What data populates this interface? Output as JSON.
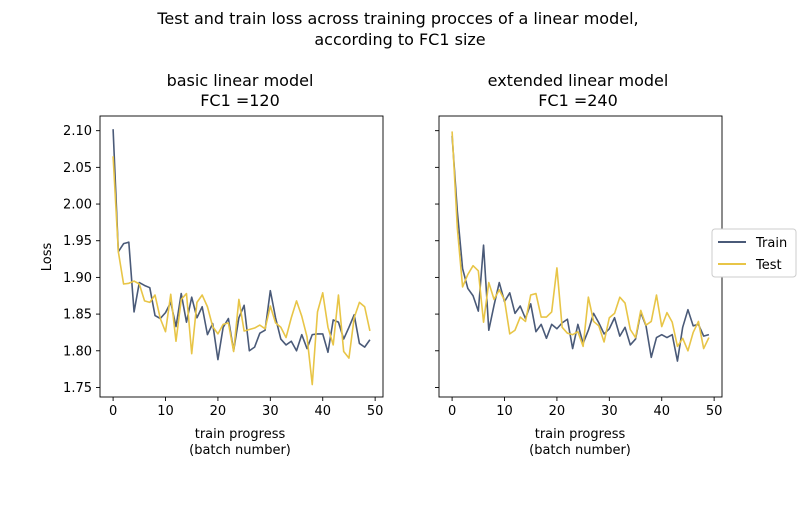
{
  "figure": {
    "suptitle_line1": "Test and train loss across training procces of a linear model,",
    "suptitle_line2": "according to FC1 size"
  },
  "legend": {
    "position": "right-center",
    "entries": [
      {
        "label": "Train",
        "color": "#4a5a78"
      },
      {
        "label": "Test",
        "color": "#e8c547"
      }
    ]
  },
  "chart_data": [
    {
      "type": "line",
      "title_line1": "basic linear model",
      "title_line2": "FC1 =120",
      "xlabel_line1": "train progress",
      "xlabel_line2": "(batch number)",
      "ylabel": "Loss",
      "xlim": [
        -2.5,
        51.5
      ],
      "ylim": [
        1.737,
        2.12
      ],
      "xticks": [
        0,
        10,
        20,
        30,
        40,
        50
      ],
      "yticks": [
        1.75,
        1.8,
        1.85,
        1.9,
        1.95,
        2.0,
        2.05,
        2.1
      ],
      "ytick_labels": [
        "1.75",
        "1.80",
        "1.85",
        "1.90",
        "1.95",
        "2.00",
        "2.05",
        "2.10"
      ],
      "x": [
        0,
        1,
        2,
        3,
        4,
        5,
        6,
        7,
        8,
        9,
        10,
        11,
        12,
        13,
        14,
        15,
        16,
        17,
        18,
        19,
        20,
        21,
        22,
        23,
        24,
        25,
        26,
        27,
        28,
        29,
        30,
        31,
        32,
        33,
        34,
        35,
        36,
        37,
        38,
        39,
        40,
        41,
        42,
        43,
        44,
        45,
        46,
        47,
        48,
        49
      ],
      "series": [
        {
          "name": "Train",
          "color": "#4a5a78",
          "values": [
            2.102,
            1.935,
            1.946,
            1.948,
            1.853,
            1.893,
            1.889,
            1.886,
            1.848,
            1.844,
            1.852,
            1.866,
            1.833,
            1.878,
            1.839,
            1.873,
            1.845,
            1.86,
            1.822,
            1.837,
            1.788,
            1.832,
            1.844,
            1.8,
            1.845,
            1.862,
            1.8,
            1.805,
            1.824,
            1.828,
            1.882,
            1.845,
            1.816,
            1.808,
            1.813,
            1.8,
            1.822,
            1.803,
            1.822,
            1.823,
            1.823,
            1.798,
            1.842,
            1.839,
            1.816,
            1.832,
            1.849,
            1.81,
            1.805,
            1.815
          ]
        },
        {
          "name": "Test",
          "color": "#e8c547",
          "values": [
            2.065,
            1.935,
            1.891,
            1.892,
            1.895,
            1.891,
            1.868,
            1.866,
            1.876,
            1.844,
            1.826,
            1.877,
            1.813,
            1.87,
            1.878,
            1.796,
            1.866,
            1.876,
            1.86,
            1.833,
            1.823,
            1.836,
            1.838,
            1.799,
            1.87,
            1.827,
            1.829,
            1.831,
            1.835,
            1.83,
            1.861,
            1.838,
            1.832,
            1.818,
            1.845,
            1.868,
            1.847,
            1.819,
            1.754,
            1.853,
            1.879,
            1.832,
            1.808,
            1.876,
            1.799,
            1.79,
            1.845,
            1.866,
            1.86,
            1.827
          ]
        }
      ]
    },
    {
      "type": "line",
      "title_line1": "extended linear model",
      "title_line2": "FC1 =240",
      "xlabel_line1": "train progress",
      "xlabel_line2": "(batch number)",
      "ylabel": "",
      "xlim": [
        -2.5,
        51.5
      ],
      "ylim": [
        1.737,
        2.12
      ],
      "xticks": [
        0,
        10,
        20,
        30,
        40,
        50
      ],
      "shared_y": true,
      "x": [
        0,
        1,
        2,
        3,
        4,
        5,
        6,
        7,
        8,
        9,
        10,
        11,
        12,
        13,
        14,
        15,
        16,
        17,
        18,
        19,
        20,
        21,
        22,
        23,
        24,
        25,
        26,
        27,
        28,
        29,
        30,
        31,
        32,
        33,
        34,
        35,
        36,
        37,
        38,
        39,
        40,
        41,
        42,
        43,
        44,
        45,
        46,
        47,
        48,
        49
      ],
      "series": [
        {
          "name": "Train",
          "color": "#4a5a78",
          "values": [
            2.093,
            1.99,
            1.912,
            1.885,
            1.875,
            1.854,
            1.944,
            1.828,
            1.862,
            1.893,
            1.867,
            1.879,
            1.851,
            1.861,
            1.844,
            1.864,
            1.826,
            1.836,
            1.817,
            1.836,
            1.83,
            1.838,
            1.843,
            1.803,
            1.836,
            1.81,
            1.828,
            1.851,
            1.838,
            1.823,
            1.83,
            1.845,
            1.82,
            1.832,
            1.808,
            1.816,
            1.852,
            1.834,
            1.791,
            1.818,
            1.822,
            1.818,
            1.822,
            1.786,
            1.832,
            1.856,
            1.834,
            1.836,
            1.82,
            1.822
          ]
        },
        {
          "name": "Test",
          "color": "#e8c547",
          "values": [
            2.099,
            1.967,
            1.887,
            1.904,
            1.916,
            1.909,
            1.839,
            1.893,
            1.87,
            1.883,
            1.869,
            1.823,
            1.828,
            1.846,
            1.84,
            1.876,
            1.878,
            1.846,
            1.846,
            1.853,
            1.913,
            1.832,
            1.824,
            1.822,
            1.826,
            1.806,
            1.873,
            1.84,
            1.834,
            1.812,
            1.845,
            1.851,
            1.873,
            1.865,
            1.829,
            1.818,
            1.855,
            1.835,
            1.84,
            1.876,
            1.833,
            1.852,
            1.839,
            1.806,
            1.817,
            1.8,
            1.825,
            1.84,
            1.803,
            1.818
          ]
        }
      ]
    }
  ]
}
